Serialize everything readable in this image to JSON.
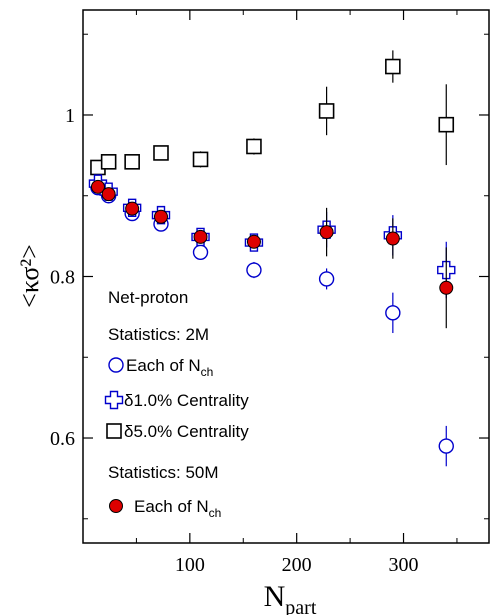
{
  "chart_data": {
    "type": "scatter",
    "title": "",
    "xlabel": "N",
    "xlabel_sub": "part",
    "ylabel": "<κσ²>",
    "xlim": [
      0,
      380
    ],
    "ylim": [
      0.47,
      1.13
    ],
    "x_ticks": [
      100,
      200,
      300
    ],
    "y_ticks": [
      0.6,
      0.8,
      1.0
    ],
    "x_tick_labels": [
      "100",
      "200",
      "300"
    ],
    "y_tick_labels": [
      "0.6",
      "0.8",
      "1"
    ],
    "grid": false,
    "legend_position": "bottom-left",
    "legend": {
      "title": "Net-proton",
      "group1_header": "Statistics: 2M",
      "group2_header": "Statistics: 50M",
      "entries": [
        {
          "marker": "circle-open",
          "color": "#0000cc",
          "text": "Each of N",
          "sub": "ch"
        },
        {
          "marker": "cross-open",
          "color": "#0000cc",
          "text": "δ1.0% Centrality",
          "sub": ""
        },
        {
          "marker": "square-open",
          "color": "#000000",
          "text": "δ5.0% Centrality",
          "sub": ""
        },
        {
          "marker": "circle-filled",
          "color": "#dd0000",
          "text": "Each of N",
          "sub": "ch"
        }
      ]
    },
    "series": [
      {
        "marker": "square-open",
        "color": "#000000",
        "x": [
          14,
          24,
          46,
          73,
          110,
          160,
          228,
          290,
          340
        ],
        "y": [
          0.935,
          0.942,
          0.942,
          0.953,
          0.945,
          0.961,
          1.005,
          1.06,
          0.988
        ],
        "err": [
          0.008,
          0.008,
          0.008,
          0.008,
          0.01,
          0.01,
          0.03,
          0.02,
          0.05
        ]
      },
      {
        "marker": "circle-open",
        "color": "#0000cc",
        "x": [
          14,
          24,
          46,
          73,
          110,
          160,
          228,
          290,
          340
        ],
        "y": [
          0.91,
          0.9,
          0.878,
          0.865,
          0.83,
          0.808,
          0.797,
          0.755,
          0.59
        ],
        "err": [
          0.005,
          0.005,
          0.006,
          0.007,
          0.008,
          0.01,
          0.013,
          0.025,
          0.025
        ]
      },
      {
        "marker": "cross-open",
        "color": "#0000cc",
        "x": [
          14,
          24,
          46,
          73,
          110,
          160,
          228,
          290,
          340
        ],
        "y": [
          0.915,
          0.905,
          0.885,
          0.876,
          0.849,
          0.842,
          0.858,
          0.851,
          0.808
        ],
        "err": [
          0.005,
          0.005,
          0.006,
          0.007,
          0.008,
          0.01,
          0.022,
          0.025,
          0.035
        ]
      },
      {
        "marker": "circle-filled",
        "color": "#dd0000",
        "x": [
          14,
          24,
          46,
          73,
          110,
          160,
          228,
          290,
          340
        ],
        "y": [
          0.911,
          0.902,
          0.884,
          0.874,
          0.849,
          0.843,
          0.855,
          0.847,
          0.786
        ],
        "err": [
          0.004,
          0.004,
          0.005,
          0.006,
          0.007,
          0.008,
          0.03,
          0.025,
          0.05
        ]
      }
    ]
  }
}
